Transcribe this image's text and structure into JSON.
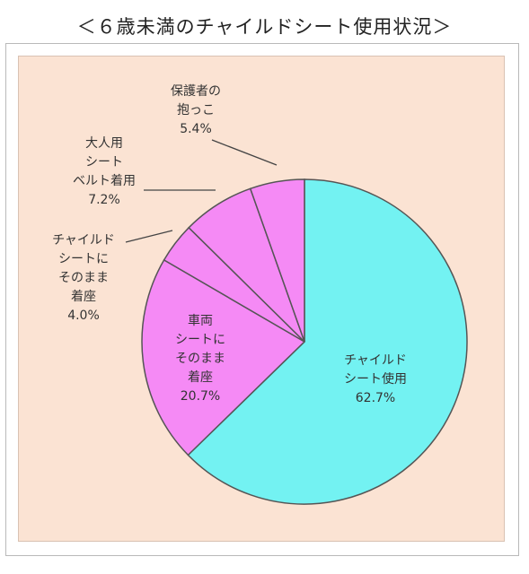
{
  "chart_data": {
    "type": "pie",
    "title": "＜６歳未満のチャイルドシート使用状況＞",
    "start_angle_deg": 0,
    "direction": "clockwise",
    "slices": [
      {
        "label_lines": [
          "チャイルド",
          "シート使用"
        ],
        "value": 62.7,
        "value_text": "62.7%",
        "color": "#73f2f2"
      },
      {
        "label_lines": [
          "車両",
          "シートに",
          "そのまま",
          "着座"
        ],
        "value": 20.7,
        "value_text": "20.7%",
        "color": "#f58af5"
      },
      {
        "label_lines": [
          "チャイルド",
          "シートに",
          "そのまま",
          "着座"
        ],
        "value": 4.0,
        "value_text": "4.0%",
        "color": "#f58af5"
      },
      {
        "label_lines": [
          "大人用",
          "シート",
          "ベルト着用"
        ],
        "value": 7.2,
        "value_text": "7.2%",
        "color": "#f58af5"
      },
      {
        "label_lines": [
          "保護者の",
          "抱っこ"
        ],
        "value": 5.4,
        "value_text": "5.4%",
        "color": "#f58af5"
      }
    ],
    "colors": {
      "plot_background": "#fbe3d3",
      "slice_border": "#555555",
      "leader_line": "#444444"
    }
  }
}
